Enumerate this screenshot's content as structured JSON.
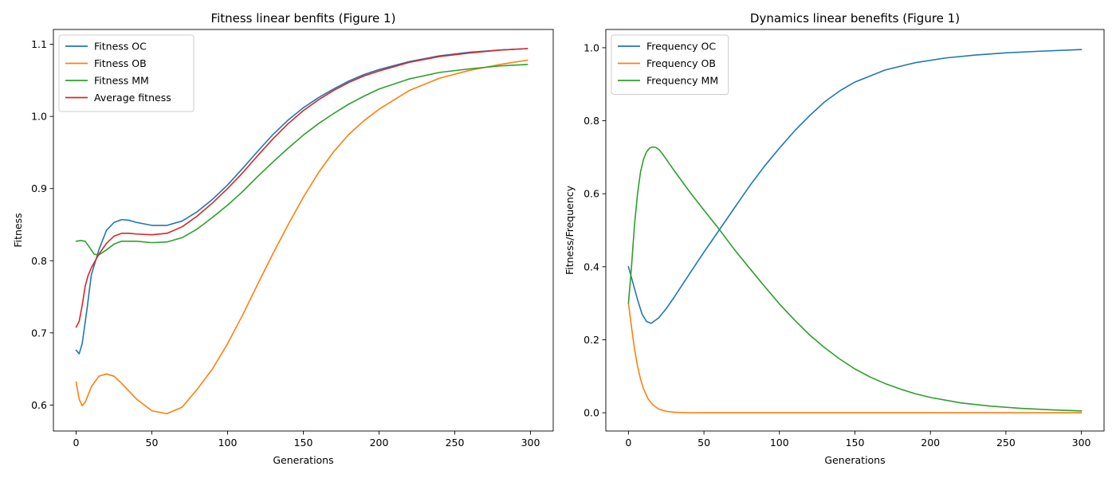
{
  "chart_data": [
    {
      "type": "line",
      "title": "Fitness linear benfits (Figure 1)",
      "xlabel": "Generations",
      "ylabel": "Fitness",
      "xlim": [
        -15,
        315
      ],
      "ylim": [
        0.564,
        1.1205
      ],
      "xticks": [
        0,
        50,
        100,
        150,
        200,
        250,
        300
      ],
      "yticks": [
        0.6,
        0.7,
        0.8,
        0.9,
        1.0,
        1.1
      ],
      "ytick_labels": [
        "0.6",
        "0.7",
        "0.8",
        "0.9",
        "1.0",
        "1.1"
      ],
      "legend_position": "upper-left",
      "series": [
        {
          "name": "Fitness OC",
          "color": "#1f77b4",
          "x": [
            0,
            2,
            4,
            7,
            10,
            15,
            20,
            25,
            30,
            35,
            40,
            50,
            60,
            70,
            80,
            90,
            100,
            110,
            120,
            130,
            140,
            150,
            160,
            170,
            180,
            190,
            200,
            220,
            240,
            260,
            280,
            298
          ],
          "y": [
            0.676,
            0.671,
            0.685,
            0.73,
            0.78,
            0.815,
            0.842,
            0.853,
            0.857,
            0.856,
            0.853,
            0.849,
            0.849,
            0.855,
            0.868,
            0.885,
            0.905,
            0.928,
            0.952,
            0.975,
            0.995,
            1.012,
            1.026,
            1.038,
            1.049,
            1.058,
            1.065,
            1.076,
            1.084,
            1.089,
            1.092,
            1.094
          ]
        },
        {
          "name": "Fitness OB",
          "color": "#ff7f0e",
          "x": [
            0,
            2,
            4,
            6,
            10,
            15,
            20,
            25,
            30,
            40,
            50,
            60,
            70,
            80,
            90,
            100,
            110,
            120,
            130,
            140,
            150,
            160,
            170,
            180,
            190,
            200,
            220,
            240,
            260,
            280,
            298
          ],
          "y": [
            0.632,
            0.608,
            0.599,
            0.604,
            0.625,
            0.64,
            0.643,
            0.64,
            0.63,
            0.608,
            0.592,
            0.588,
            0.597,
            0.622,
            0.65,
            0.685,
            0.725,
            0.768,
            0.81,
            0.85,
            0.888,
            0.922,
            0.951,
            0.975,
            0.994,
            1.01,
            1.036,
            1.053,
            1.064,
            1.072,
            1.078
          ]
        },
        {
          "name": "Fitness MM",
          "color": "#2ca02c",
          "x": [
            0,
            3,
            6,
            9,
            12,
            15,
            20,
            25,
            30,
            40,
            50,
            60,
            70,
            80,
            90,
            100,
            110,
            120,
            130,
            140,
            150,
            160,
            170,
            180,
            190,
            200,
            220,
            240,
            260,
            280,
            298
          ],
          "y": [
            0.827,
            0.828,
            0.827,
            0.818,
            0.809,
            0.808,
            0.815,
            0.823,
            0.827,
            0.827,
            0.825,
            0.826,
            0.832,
            0.844,
            0.86,
            0.877,
            0.896,
            0.917,
            0.937,
            0.956,
            0.974,
            0.99,
            1.004,
            1.017,
            1.028,
            1.038,
            1.052,
            1.061,
            1.066,
            1.07,
            1.072
          ]
        },
        {
          "name": "Average fitness",
          "color": "#d62728",
          "x": [
            0,
            2,
            4,
            6,
            8,
            10,
            15,
            20,
            25,
            30,
            35,
            40,
            50,
            60,
            70,
            80,
            90,
            100,
            110,
            120,
            130,
            140,
            150,
            160,
            170,
            180,
            190,
            200,
            220,
            240,
            260,
            280,
            298
          ],
          "y": [
            0.708,
            0.716,
            0.738,
            0.765,
            0.78,
            0.79,
            0.809,
            0.824,
            0.834,
            0.838,
            0.838,
            0.837,
            0.836,
            0.838,
            0.847,
            0.862,
            0.88,
            0.9,
            0.922,
            0.946,
            0.969,
            0.99,
            1.008,
            1.023,
            1.036,
            1.047,
            1.056,
            1.063,
            1.075,
            1.083,
            1.088,
            1.092,
            1.094
          ]
        }
      ]
    },
    {
      "type": "line",
      "title": "Dynamics linear benefits (Figure 1)",
      "xlabel": "Generations",
      "ylabel": "Fitness/Frequency",
      "xlim": [
        -15,
        315
      ],
      "ylim": [
        -0.05,
        1.05
      ],
      "xticks": [
        0,
        50,
        100,
        150,
        200,
        250,
        300
      ],
      "yticks": [
        0.0,
        0.2,
        0.4,
        0.6,
        0.8,
        1.0
      ],
      "ytick_labels": [
        "0.0",
        "0.2",
        "0.4",
        "0.6",
        "0.8",
        "1.0"
      ],
      "legend_position": "upper-left",
      "series": [
        {
          "name": "Frequency OC",
          "color": "#1f77b4",
          "x": [
            0,
            3,
            6,
            9,
            12,
            15,
            20,
            25,
            30,
            40,
            50,
            60,
            70,
            80,
            90,
            100,
            110,
            120,
            130,
            140,
            150,
            170,
            190,
            210,
            230,
            250,
            270,
            300
          ],
          "y": [
            0.4,
            0.355,
            0.31,
            0.27,
            0.25,
            0.245,
            0.26,
            0.285,
            0.315,
            0.378,
            0.44,
            0.5,
            0.56,
            0.62,
            0.675,
            0.725,
            0.772,
            0.814,
            0.852,
            0.882,
            0.906,
            0.939,
            0.959,
            0.972,
            0.98,
            0.986,
            0.99,
            0.995
          ]
        },
        {
          "name": "Frequency OB",
          "color": "#ff7f0e",
          "x": [
            0,
            2,
            4,
            6,
            8,
            10,
            13,
            16,
            20,
            25,
            30,
            35,
            40,
            50,
            100,
            200,
            300
          ],
          "y": [
            0.3,
            0.235,
            0.175,
            0.128,
            0.092,
            0.065,
            0.038,
            0.022,
            0.01,
            0.004,
            0.0015,
            0.0006,
            0.0002,
            0.0,
            0.0,
            0.0,
            0.0
          ]
        },
        {
          "name": "Frequency MM",
          "color": "#2ca02c",
          "x": [
            0,
            2,
            4,
            6,
            8,
            10,
            12,
            14,
            16,
            18,
            20,
            22,
            25,
            30,
            40,
            50,
            60,
            70,
            80,
            90,
            100,
            110,
            120,
            130,
            140,
            150,
            160,
            170,
            180,
            190,
            200,
            220,
            240,
            260,
            280,
            300
          ],
          "y": [
            0.3,
            0.4,
            0.515,
            0.6,
            0.66,
            0.695,
            0.715,
            0.725,
            0.728,
            0.727,
            0.722,
            0.712,
            0.695,
            0.665,
            0.608,
            0.555,
            0.503,
            0.448,
            0.397,
            0.347,
            0.298,
            0.254,
            0.213,
            0.178,
            0.147,
            0.12,
            0.098,
            0.08,
            0.065,
            0.052,
            0.042,
            0.027,
            0.018,
            0.012,
            0.008,
            0.005
          ]
        }
      ]
    }
  ]
}
